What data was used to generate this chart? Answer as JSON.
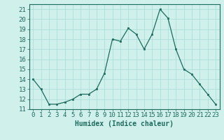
{
  "x": [
    0,
    1,
    2,
    3,
    4,
    5,
    6,
    7,
    8,
    9,
    10,
    11,
    12,
    13,
    14,
    15,
    16,
    17,
    18,
    19,
    20,
    21,
    22,
    23
  ],
  "y": [
    14.0,
    13.0,
    11.5,
    11.5,
    11.7,
    12.0,
    12.5,
    12.5,
    13.0,
    14.6,
    18.0,
    17.8,
    19.1,
    18.5,
    17.0,
    18.5,
    21.0,
    20.1,
    17.0,
    15.0,
    14.5,
    13.5,
    12.5,
    11.5
  ],
  "xlabel": "Humidex (Indice chaleur)",
  "ylim": [
    11,
    21.5
  ],
  "xlim": [
    -0.5,
    23.5
  ],
  "yticks": [
    11,
    12,
    13,
    14,
    15,
    16,
    17,
    18,
    19,
    20,
    21
  ],
  "xticks": [
    0,
    1,
    2,
    3,
    4,
    5,
    6,
    7,
    8,
    9,
    10,
    11,
    12,
    13,
    14,
    15,
    16,
    17,
    18,
    19,
    20,
    21,
    22,
    23
  ],
  "line_color": "#1e6b5e",
  "marker_color": "#1e6b5e",
  "bg_color": "#cff0eb",
  "grid_color": "#a8ddd7",
  "axes_color": "#1e6b5e",
  "tick_label_color": "#1e6b5e",
  "xlabel_color": "#1e6b5e",
  "xlabel_fontsize": 7,
  "tick_fontsize": 6.5
}
